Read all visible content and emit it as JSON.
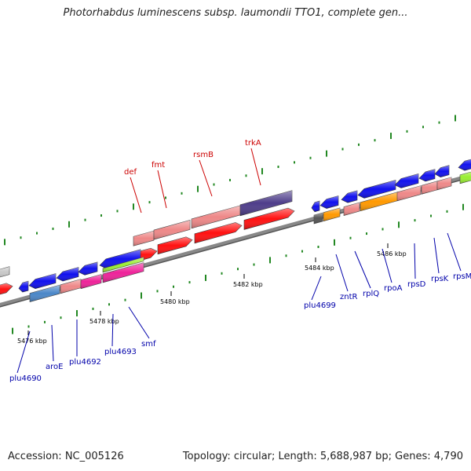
{
  "header": {
    "title": "Photorhabdus luminescens subsp. laumondii TTO1, complete gen..."
  },
  "footer": {
    "accession": "Accession: NC_005126",
    "summary": "Topology: circular; Length: 5,688,987 bp; Genes: 4,790"
  },
  "axis": {
    "ticks": [
      "5476 kbp",
      "5478 kbp",
      "5480 kbp",
      "5482 kbp",
      "5484 kbp",
      "5486 kbp"
    ]
  },
  "genes_above": [
    "def",
    "fmt",
    "rsmB",
    "trkA"
  ],
  "genes_below": [
    "plu4690",
    "aroE",
    "plu4692",
    "plu4693",
    "smf",
    "plu4699",
    "zntR",
    "rplQ",
    "rpoA",
    "rpsD",
    "rpsK",
    "rpsM"
  ],
  "colors": {
    "forward_cds": "#ff1111",
    "reverse_cds": "#1111ee",
    "tick": "#228822",
    "axis": "#888888",
    "label_above": "#cc0000",
    "label_below": "#0000aa"
  }
}
